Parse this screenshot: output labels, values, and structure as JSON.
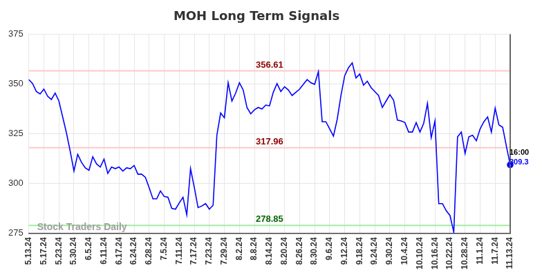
{
  "chart_data": {
    "type": "line",
    "title": "MOH Long Term Signals",
    "categories": [
      "5.13.24",
      null,
      null,
      null,
      "5.17.24",
      null,
      null,
      null,
      "5.23.24",
      null,
      null,
      null,
      "5.30.24",
      null,
      null,
      null,
      "6.5.24",
      null,
      null,
      null,
      "6.11.24",
      null,
      null,
      null,
      "6.17.24",
      null,
      null,
      null,
      "6.24.24",
      null,
      null,
      null,
      "6.28.24",
      null,
      null,
      null,
      "7.5.24",
      null,
      null,
      null,
      "7.11.24",
      null,
      null,
      null,
      "7.17.24",
      null,
      null,
      null,
      "7.23.24",
      null,
      null,
      null,
      "7.29.24",
      null,
      null,
      null,
      "8.2.24",
      null,
      null,
      null,
      "8.8.24",
      null,
      null,
      null,
      "8.14.24",
      null,
      null,
      null,
      "8.20.24",
      null,
      null,
      null,
      "8.26.24",
      null,
      null,
      null,
      "8.30.24",
      null,
      null,
      null,
      "9.6.24",
      null,
      null,
      null,
      "9.12.24",
      null,
      null,
      null,
      "9.18.24",
      null,
      null,
      null,
      "9.24.24",
      null,
      null,
      null,
      "9.30.24",
      null,
      null,
      null,
      "10.4.24",
      null,
      null,
      null,
      "10.10.24",
      null,
      null,
      null,
      "10.16.24",
      null,
      null,
      null,
      "10.22.24",
      null,
      null,
      null,
      "10.28.24",
      null,
      null,
      null,
      "11.1.24",
      null,
      null,
      null,
      "11.7.24",
      null,
      null,
      null,
      "11.13.24"
    ],
    "values": [
      352.2,
      350.2,
      346.2,
      345,
      347.4,
      343.8,
      342.2,
      345.4,
      341.4,
      333.4,
      325.4,
      316.2,
      306.2,
      314.6,
      310.6,
      307.8,
      306.6,
      313.4,
      309.8,
      308.2,
      312.2,
      305,
      308.2,
      307.4,
      308.2,
      306.2,
      307.8,
      307.4,
      309,
      304.6,
      304.6,
      303,
      297.8,
      292.2,
      292.2,
      296.2,
      293.4,
      293,
      287.4,
      287,
      290.2,
      293,
      284.2,
      307.4,
      298,
      287.8,
      288.6,
      289.8,
      287,
      289,
      324.2,
      335.4,
      333,
      350.6,
      341.4,
      345.4,
      350.6,
      347,
      338.2,
      335,
      337,
      338.2,
      337.4,
      339.4,
      339,
      345.8,
      350.2,
      346.2,
      348.6,
      347,
      344.2,
      345.8,
      347.4,
      349.8,
      352.2,
      350.6,
      349.8,
      356.2,
      331,
      331,
      327.4,
      323.8,
      332.2,
      344.2,
      354.2,
      358.2,
      360.6,
      353,
      355,
      349.4,
      351.4,
      348.2,
      346.2,
      344.2,
      338.2,
      341.4,
      344.6,
      341.8,
      331.8,
      331.4,
      330.6,
      325.8,
      325.8,
      330.6,
      325.8,
      330.2,
      340.2,
      323,
      331.4,
      289.8,
      289.8,
      286.2,
      283.8,
      275.4,
      323.4,
      325.8,
      315,
      323.4,
      324.2,
      321.4,
      327.4,
      331,
      333.4,
      325.8,
      337.8,
      329.4,
      328.2,
      318.6,
      309.3
    ],
    "color": "#0000ff",
    "ylim": [
      275,
      375
    ],
    "yticks": [
      275,
      300,
      325,
      350,
      375
    ],
    "grid": true,
    "signals": [
      {
        "value": 356.61,
        "color": "#ffc8c8",
        "label_color": "#8b0000"
      },
      {
        "value": 317.96,
        "color": "#ffc8c8",
        "label_color": "#8b0000"
      },
      {
        "value": 278.85,
        "color": "#a0eea0",
        "label_color": "#006400"
      }
    ],
    "last_label": {
      "time": "16:00",
      "value": 309.3
    },
    "watermark": "Stock Traders Daily"
  }
}
